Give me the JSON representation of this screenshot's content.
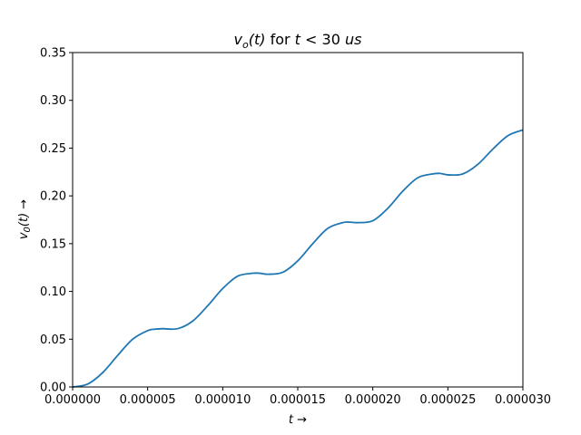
{
  "chart_data": {
    "type": "line",
    "title_parts": {
      "v": "v",
      "sub": "o",
      "arg": "(t)",
      "mid": " for ",
      "t": "t",
      "lt": " < 30 ",
      "unit": "us"
    },
    "xlabel_parts": {
      "t": "t",
      "arrow": " →"
    },
    "ylabel_parts": {
      "v": "v",
      "sub": "0",
      "arg": "(t)",
      "arrow": " →"
    },
    "xlim": [
      0,
      3e-05
    ],
    "ylim": [
      0,
      0.35
    ],
    "xticks": [
      {
        "value": 0,
        "label": "0.000000"
      },
      {
        "value": 5e-06,
        "label": "0.000005"
      },
      {
        "value": 1e-05,
        "label": "0.000010"
      },
      {
        "value": 1.5e-05,
        "label": "0.000015"
      },
      {
        "value": 2e-05,
        "label": "0.000020"
      },
      {
        "value": 2.5e-05,
        "label": "0.000025"
      },
      {
        "value": 3e-05,
        "label": "0.000030"
      }
    ],
    "yticks": [
      {
        "value": 0,
        "label": "0.00"
      },
      {
        "value": 0.05,
        "label": "0.05"
      },
      {
        "value": 0.1,
        "label": "0.10"
      },
      {
        "value": 0.15,
        "label": "0.15"
      },
      {
        "value": 0.2,
        "label": "0.20"
      },
      {
        "value": 0.25,
        "label": "0.25"
      },
      {
        "value": 0.3,
        "label": "0.30"
      },
      {
        "value": 0.35,
        "label": "0.35"
      }
    ],
    "grid": false,
    "series": [
      {
        "color": "#1f77b4",
        "x": [
          0,
          1e-06,
          2e-06,
          3e-06,
          4e-06,
          5e-06,
          5.5e-06,
          6e-06,
          7e-06,
          8e-06,
          9e-06,
          1e-05,
          1.1e-05,
          1.2e-05,
          1.25e-05,
          1.3e-05,
          1.4e-05,
          1.5e-05,
          1.6e-05,
          1.7e-05,
          1.8e-05,
          1.85e-05,
          1.9e-05,
          2e-05,
          2.1e-05,
          2.2e-05,
          2.3e-05,
          2.4e-05,
          2.45e-05,
          2.5e-05,
          2.6e-05,
          2.7e-05,
          2.8e-05,
          2.9e-05,
          3e-05
        ],
        "y": [
          0,
          0.003,
          0.015,
          0.033,
          0.05,
          0.059,
          0.0605,
          0.061,
          0.061,
          0.069,
          0.085,
          0.103,
          0.116,
          0.119,
          0.119,
          0.118,
          0.12,
          0.132,
          0.15,
          0.166,
          0.172,
          0.1725,
          0.172,
          0.174,
          0.187,
          0.205,
          0.219,
          0.223,
          0.2235,
          0.222,
          0.223,
          0.233,
          0.249,
          0.263,
          0.269
        ]
      }
    ]
  }
}
